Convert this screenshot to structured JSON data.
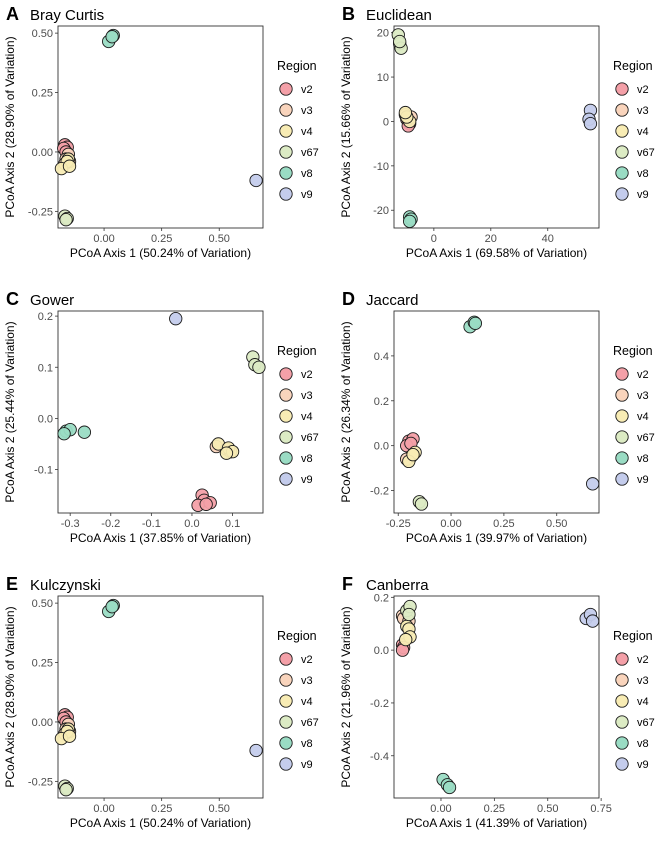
{
  "legend": {
    "title": "Region",
    "entries": [
      {
        "label": "v2",
        "color": "#F4A0A8"
      },
      {
        "label": "v3",
        "color": "#F9D4BC"
      },
      {
        "label": "v4",
        "color": "#F8ECB4"
      },
      {
        "label": "v67",
        "color": "#DCEBC4"
      },
      {
        "label": "v8",
        "color": "#9ADCC4"
      },
      {
        "label": "v9",
        "color": "#C4CCEC"
      }
    ]
  },
  "chart_data": [
    {
      "type": "scatter",
      "panel": "A",
      "title": "Bray Curtis",
      "xlabel": "PCoA Axis 1 (50.24% of Variation)",
      "ylabel": "PCoA Axis 2 (28.90% of Variation)",
      "xlim": [
        -0.2,
        0.69
      ],
      "ylim": [
        -0.32,
        0.53
      ],
      "xticks": [
        0.0,
        0.25,
        0.5
      ],
      "xticklabels": [
        "0.00",
        "0.25",
        "0.50"
      ],
      "yticks": [
        -0.25,
        0.0,
        0.25,
        0.5
      ],
      "yticklabels": [
        "-0.25",
        "0.00",
        "0.25",
        "0.50"
      ],
      "series": [
        {
          "name": "v2",
          "points": [
            [
              -0.17,
              0.03
            ],
            [
              -0.16,
              0.02
            ],
            [
              -0.175,
              0.015
            ],
            [
              -0.165,
              0.0
            ]
          ]
        },
        {
          "name": "v3",
          "points": [
            [
              -0.155,
              -0.01
            ],
            [
              -0.15,
              -0.04
            ],
            [
              -0.165,
              -0.03
            ],
            [
              -0.17,
              -0.05
            ]
          ]
        },
        {
          "name": "v4",
          "points": [
            [
              -0.155,
              -0.03
            ],
            [
              -0.16,
              -0.04
            ],
            [
              -0.185,
              -0.07
            ],
            [
              -0.15,
              -0.06
            ]
          ]
        },
        {
          "name": "v67",
          "points": [
            [
              -0.17,
              -0.27
            ],
            [
              -0.16,
              -0.28
            ],
            [
              -0.165,
              -0.285
            ]
          ]
        },
        {
          "name": "v8",
          "points": [
            [
              0.02,
              0.465
            ],
            [
              0.04,
              0.49
            ],
            [
              0.035,
              0.485
            ]
          ]
        },
        {
          "name": "v9",
          "points": [
            [
              0.66,
              -0.12
            ]
          ]
        }
      ]
    },
    {
      "type": "scatter",
      "panel": "B",
      "title": "Euclidean",
      "xlabel": "PCoA Axis 1 (69.58% of Variation)",
      "ylabel": "PCoA Axis 2 (15.66% of Variation)",
      "xlim": [
        -14,
        58
      ],
      "ylim": [
        -24,
        21.5
      ],
      "xticks": [
        0,
        20,
        40
      ],
      "xticklabels": [
        "0",
        "20",
        "40"
      ],
      "yticks": [
        -20,
        -10,
        0,
        10,
        20
      ],
      "yticklabels": [
        "-20",
        "-10",
        "0",
        "10",
        "20"
      ],
      "series": [
        {
          "name": "v2",
          "points": [
            [
              -9.5,
              0.5
            ],
            [
              -8.5,
              -0.5
            ],
            [
              -9,
              -1
            ]
          ]
        },
        {
          "name": "v3",
          "points": [
            [
              -9,
              0.5
            ],
            [
              -8,
              1
            ],
            [
              -10,
              1.5
            ]
          ]
        },
        {
          "name": "v4",
          "points": [
            [
              -8.5,
              0
            ],
            [
              -9.5,
              1
            ],
            [
              -10,
              2
            ]
          ]
        },
        {
          "name": "v67",
          "points": [
            [
              -12.5,
              19.5
            ],
            [
              -12,
              17.5
            ],
            [
              -11.5,
              16.5
            ],
            [
              -12,
              18
            ]
          ]
        },
        {
          "name": "v8",
          "points": [
            [
              -8.5,
              -21.5
            ],
            [
              -8,
              -22
            ],
            [
              -8.5,
              -22.5
            ]
          ]
        },
        {
          "name": "v9",
          "points": [
            [
              55,
              2.5
            ],
            [
              54.5,
              0.5
            ],
            [
              55,
              -0.5
            ]
          ]
        }
      ]
    },
    {
      "type": "scatter",
      "panel": "C",
      "title": "Gower",
      "xlabel": "PCoA Axis 1 (37.85% of Variation)",
      "ylabel": "PCoA Axis 2 (25.44% of Variation)",
      "xlim": [
        -0.33,
        0.175
      ],
      "ylim": [
        -0.185,
        0.21
      ],
      "xticks": [
        -0.3,
        -0.2,
        -0.1,
        0.0,
        0.1
      ],
      "xticklabels": [
        "-0.3",
        "-0.2",
        "-0.1",
        "0.0",
        "0.1"
      ],
      "yticks": [
        -0.1,
        0.0,
        0.1,
        0.2
      ],
      "yticklabels": [
        "-0.1",
        "0.0",
        "0.1",
        "0.2"
      ],
      "series": [
        {
          "name": "v2",
          "points": [
            [
              0.025,
              -0.15
            ],
            [
              0.03,
              -0.16
            ],
            [
              0.045,
              -0.165
            ],
            [
              0.015,
              -0.17
            ],
            [
              0.035,
              -0.168
            ]
          ]
        },
        {
          "name": "v3",
          "points": [
            [
              0.06,
              -0.055
            ],
            [
              0.085,
              -0.06
            ],
            [
              0.095,
              -0.065
            ]
          ]
        },
        {
          "name": "v4",
          "points": [
            [
              0.065,
              -0.05
            ],
            [
              0.09,
              -0.058
            ],
            [
              0.1,
              -0.065
            ],
            [
              0.085,
              -0.068
            ]
          ]
        },
        {
          "name": "v67",
          "points": [
            [
              0.15,
              0.12
            ],
            [
              0.155,
              0.105
            ],
            [
              0.165,
              0.1
            ]
          ]
        },
        {
          "name": "v8",
          "points": [
            [
              -0.31,
              -0.025
            ],
            [
              -0.3,
              -0.022
            ],
            [
              -0.315,
              -0.03
            ],
            [
              -0.265,
              -0.027
            ]
          ]
        },
        {
          "name": "v9",
          "points": [
            [
              -0.04,
              0.195
            ]
          ]
        }
      ]
    },
    {
      "type": "scatter",
      "panel": "D",
      "title": "Jaccard",
      "xlabel": "PCoA Axis 1 (39.97% of Variation)",
      "ylabel": "PCoA Axis 2 (26.34% of Variation)",
      "xlim": [
        -0.27,
        0.7
      ],
      "ylim": [
        -0.3,
        0.6
      ],
      "xticks": [
        -0.25,
        0.0,
        0.25,
        0.5
      ],
      "xticklabels": [
        "-0.25",
        "0.00",
        "0.25",
        "0.50"
      ],
      "yticks": [
        -0.2,
        0.0,
        0.2,
        0.4
      ],
      "yticklabels": [
        "-0.2",
        "0.0",
        "0.2",
        "0.4"
      ],
      "series": [
        {
          "name": "v2",
          "points": [
            [
              -0.2,
              0.02
            ],
            [
              -0.18,
              0.03
            ],
            [
              -0.21,
              0.0
            ],
            [
              -0.19,
              0.01
            ]
          ]
        },
        {
          "name": "v3",
          "points": [
            [
              -0.18,
              -0.04
            ],
            [
              -0.19,
              -0.05
            ],
            [
              -0.21,
              -0.06
            ]
          ]
        },
        {
          "name": "v4",
          "points": [
            [
              -0.17,
              -0.03
            ],
            [
              -0.2,
              -0.07
            ],
            [
              -0.18,
              -0.04
            ]
          ]
        },
        {
          "name": "v67",
          "points": [
            [
              -0.15,
              -0.25
            ],
            [
              -0.14,
              -0.26
            ]
          ]
        },
        {
          "name": "v8",
          "points": [
            [
              0.09,
              0.53
            ],
            [
              0.11,
              0.55
            ],
            [
              0.115,
              0.545
            ]
          ]
        },
        {
          "name": "v9",
          "points": [
            [
              0.67,
              -0.17
            ]
          ]
        }
      ]
    },
    {
      "type": "scatter",
      "panel": "E",
      "title": "Kulczynski",
      "xlabel": "PCoA Axis 1 (50.24% of Variation)",
      "ylabel": "PCoA Axis 2 (28.90% of Variation)",
      "xlim": [
        -0.2,
        0.69
      ],
      "ylim": [
        -0.32,
        0.53
      ],
      "xticks": [
        0.0,
        0.25,
        0.5
      ],
      "xticklabels": [
        "0.00",
        "0.25",
        "0.50"
      ],
      "yticks": [
        -0.25,
        0.0,
        0.25,
        0.5
      ],
      "yticklabels": [
        "-0.25",
        "0.00",
        "0.25",
        "0.50"
      ],
      "series": [
        {
          "name": "v2",
          "points": [
            [
              -0.17,
              0.03
            ],
            [
              -0.16,
              0.02
            ],
            [
              -0.175,
              0.015
            ],
            [
              -0.165,
              0.0
            ]
          ]
        },
        {
          "name": "v3",
          "points": [
            [
              -0.155,
              -0.01
            ],
            [
              -0.15,
              -0.04
            ],
            [
              -0.165,
              -0.03
            ],
            [
              -0.17,
              -0.05
            ]
          ]
        },
        {
          "name": "v4",
          "points": [
            [
              -0.155,
              -0.03
            ],
            [
              -0.16,
              -0.04
            ],
            [
              -0.185,
              -0.07
            ],
            [
              -0.15,
              -0.06
            ]
          ]
        },
        {
          "name": "v67",
          "points": [
            [
              -0.17,
              -0.27
            ],
            [
              -0.16,
              -0.28
            ],
            [
              -0.165,
              -0.285
            ]
          ]
        },
        {
          "name": "v8",
          "points": [
            [
              0.02,
              0.465
            ],
            [
              0.04,
              0.49
            ],
            [
              0.035,
              0.485
            ]
          ]
        },
        {
          "name": "v9",
          "points": [
            [
              0.66,
              -0.12
            ]
          ]
        }
      ]
    },
    {
      "type": "scatter",
      "panel": "F",
      "title": "Canberra",
      "xlabel": "PCoA Axis 1 (41.39% of Variation)",
      "ylabel": "PCoA Axis 2 (21.96% of Variation)",
      "xlim": [
        -0.22,
        0.74
      ],
      "ylim": [
        -0.56,
        0.205
      ],
      "xticks": [
        0.0,
        0.25,
        0.5,
        0.75
      ],
      "xticklabels": [
        "0.00",
        "0.25",
        "0.50",
        "0.75"
      ],
      "yticks": [
        -0.4,
        -0.2,
        0.0,
        0.2
      ],
      "yticklabels": [
        "-0.4",
        "-0.2",
        "0.0",
        "0.2"
      ],
      "series": [
        {
          "name": "v2",
          "points": [
            [
              -0.18,
              0.02
            ],
            [
              -0.175,
              0.01
            ],
            [
              -0.18,
              0.0
            ]
          ]
        },
        {
          "name": "v3",
          "points": [
            [
              -0.18,
              0.13
            ],
            [
              -0.175,
              0.12
            ],
            [
              -0.15,
              0.11
            ]
          ]
        },
        {
          "name": "v4",
          "points": [
            [
              -0.16,
              0.09
            ],
            [
              -0.15,
              0.08
            ],
            [
              -0.145,
              0.05
            ],
            [
              -0.165,
              0.04
            ]
          ]
        },
        {
          "name": "v67",
          "points": [
            [
              -0.16,
              0.15
            ],
            [
              -0.145,
              0.165
            ],
            [
              -0.15,
              0.135
            ]
          ]
        },
        {
          "name": "v8",
          "points": [
            [
              0.01,
              -0.49
            ],
            [
              0.03,
              -0.51
            ],
            [
              0.04,
              -0.52
            ]
          ]
        },
        {
          "name": "v9",
          "points": [
            [
              0.68,
              0.12
            ],
            [
              0.7,
              0.135
            ],
            [
              0.71,
              0.11
            ]
          ]
        }
      ]
    }
  ]
}
